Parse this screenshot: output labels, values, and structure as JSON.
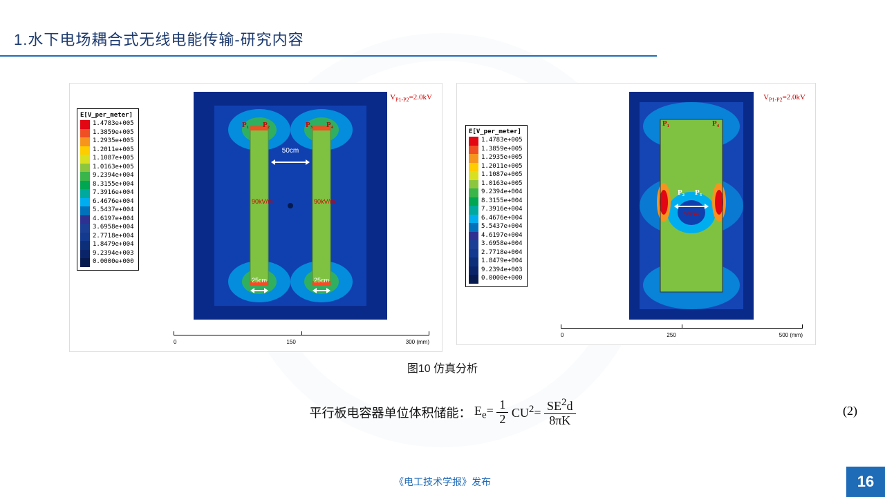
{
  "header": {
    "title": "1.水下电场耦合式无线电能传输-研究内容"
  },
  "figures": {
    "caption": "图10 仿真分析",
    "voltage_label_html": "V<sub>P1-P2</sub>=2.0kV",
    "legend": {
      "title": "E[V_per_meter]",
      "entries": [
        {
          "label": "1.4783e+005",
          "color": "#e30613"
        },
        {
          "label": "1.3859e+005",
          "color": "#f04e23"
        },
        {
          "label": "1.2935e+005",
          "color": "#f7941d"
        },
        {
          "label": "1.2011e+005",
          "color": "#ffcc00"
        },
        {
          "label": "1.1087e+005",
          "color": "#d9e021"
        },
        {
          "label": "1.0163e+005",
          "color": "#8cc63f"
        },
        {
          "label": "9.2394e+004",
          "color": "#39b54a"
        },
        {
          "label": "8.3155e+004",
          "color": "#00a651"
        },
        {
          "label": "7.3916e+004",
          "color": "#00a99d"
        },
        {
          "label": "6.4676e+004",
          "color": "#00aeef"
        },
        {
          "label": "5.5437e+004",
          "color": "#0072bc"
        },
        {
          "label": "4.6197e+004",
          "color": "#2e3192"
        },
        {
          "label": "3.6958e+004",
          "color": "#1b3f94"
        },
        {
          "label": "2.7718e+004",
          "color": "#133a8e"
        },
        {
          "label": "1.8479e+004",
          "color": "#0d2f7a"
        },
        {
          "label": "9.2394e+003",
          "color": "#0a246a"
        },
        {
          "label": "0.0000e+000",
          "color": "#071a50"
        }
      ]
    },
    "left": {
      "scale": {
        "start": "0",
        "mid": "150",
        "end": "300 (mm)"
      },
      "sim": {
        "bg": "#0d2f9a",
        "plates": {
          "p1": "P₁",
          "p2": "P₂",
          "p3": "P₃",
          "p4": "P₄"
        },
        "gap_label": "50cm",
        "width_label": "25cm",
        "field_label": "90kV/m"
      }
    },
    "right": {
      "scale": {
        "start": "0",
        "mid": "250",
        "end": "500 (mm)"
      },
      "sim": {
        "bg": "#0d2f9a",
        "plates": {
          "p1": "P₁",
          "p4": "P₄",
          "p2": "P₂",
          "p3": "P₃"
        },
        "gap_label": "50cm"
      }
    }
  },
  "equation": {
    "prefix": "平行板电容器单位体积储能：",
    "lhs": "E<sub>e</sub>=",
    "frac1_num": "1",
    "frac1_den": "2",
    "mid": "CU<sup>2</sup>=",
    "frac2_num": "SE<sup>2</sup>d",
    "frac2_den": "8πK",
    "number": "(2)"
  },
  "footer": {
    "publisher": "《电工技术学报》发布",
    "page": "16"
  }
}
